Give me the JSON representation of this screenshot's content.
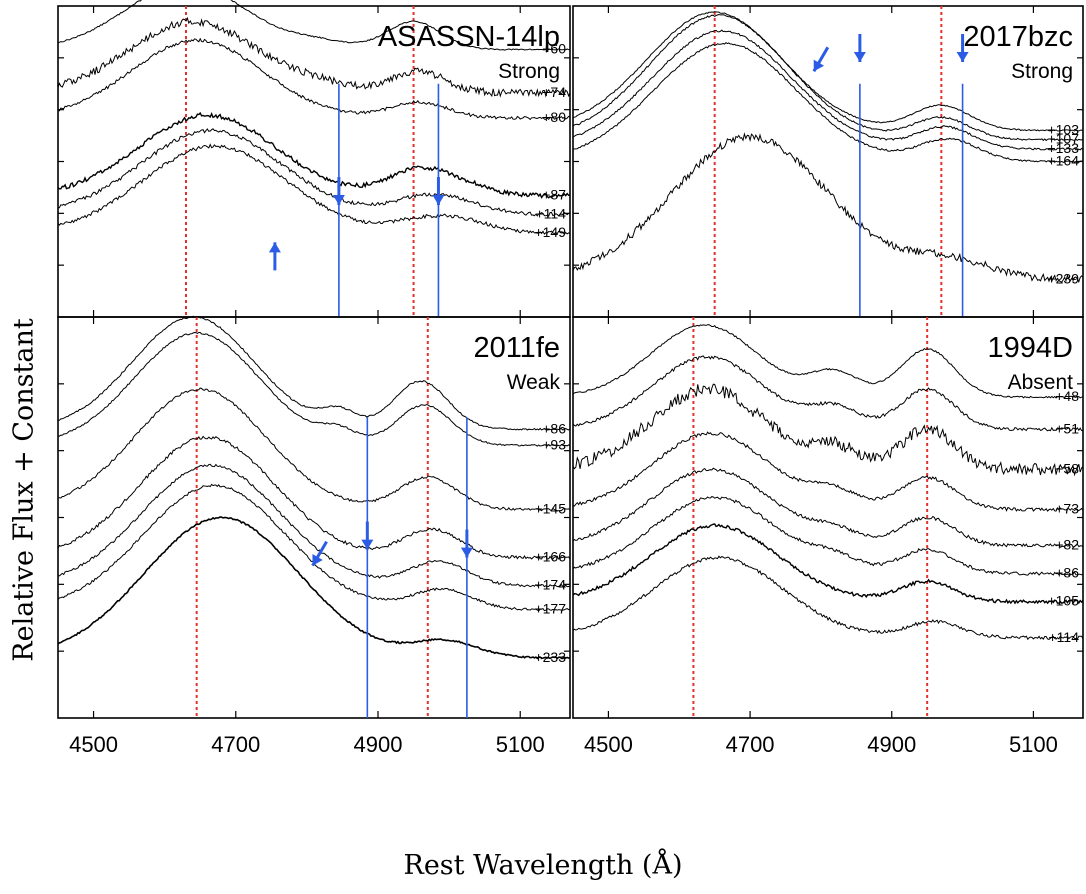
{
  "figure": {
    "ylabel": "Relative Flux + Constant",
    "xlabel": "Rest Wavelength (Å)"
  },
  "chart_data": [
    {
      "type": "line",
      "name": "ASASSN-14lp",
      "category": "Strong",
      "xlim": [
        4450,
        5170
      ],
      "x_ticks": [
        4500,
        4700,
        4900,
        5100
      ],
      "show_tick_labels": false,
      "red_lines": [
        4630,
        4950
      ],
      "blue_lines": [
        4845,
        4985
      ],
      "arrows": [
        {
          "x": 4755,
          "y": 0.24,
          "dir": "up"
        },
        {
          "x": 4845,
          "y": 0.36,
          "dir": "down"
        },
        {
          "x": 4985,
          "y": 0.36,
          "dir": "down"
        }
      ],
      "series": [
        {
          "phase": "+60",
          "offset": 0.86,
          "noise": 0.002,
          "width": 1,
          "peaks": [
            [
              4630,
              0.21,
              85
            ],
            [
              4950,
              0.09,
              38
            ],
            [
              4820,
              0.02,
              40
            ]
          ]
        },
        {
          "phase": "+74",
          "offset": 0.72,
          "noise": 0.012,
          "width": 1,
          "peaks": [
            [
              4640,
              0.23,
              90
            ],
            [
              4955,
              0.07,
              40
            ],
            [
              4815,
              0.02,
              40
            ]
          ]
        },
        {
          "phase": "+80",
          "offset": 0.64,
          "noise": 0.005,
          "width": 1,
          "peaks": [
            [
              4645,
              0.25,
              92
            ],
            [
              4958,
              0.05,
              40
            ]
          ]
        },
        {
          "phase": "+87",
          "offset": 0.39,
          "noise": 0.007,
          "width": 1.4,
          "peaks": [
            [
              4660,
              0.26,
              95
            ],
            [
              4955,
              0.08,
              42
            ],
            [
              5020,
              0.03,
              40
            ]
          ]
        },
        {
          "phase": "+114",
          "offset": 0.33,
          "noise": 0.006,
          "width": 1,
          "peaks": [
            [
              4665,
              0.27,
              98
            ],
            [
              4960,
              0.05,
              42
            ],
            [
              5020,
              0.03,
              40
            ]
          ]
        },
        {
          "phase": "+149",
          "offset": 0.27,
          "noise": 0.006,
          "width": 1,
          "peaks": [
            [
              4670,
              0.28,
              100
            ],
            [
              4965,
              0.04,
              44
            ],
            [
              5025,
              0.03,
              40
            ]
          ]
        }
      ]
    },
    {
      "type": "line",
      "name": "2017bzc",
      "category": "Strong",
      "xlim": [
        4450,
        5170
      ],
      "x_ticks": [
        4500,
        4700,
        4900,
        5100
      ],
      "show_tick_labels": false,
      "red_lines": [
        4650,
        4970
      ],
      "blue_lines": [
        4855,
        5000
      ],
      "arrows": [
        {
          "x": 4790,
          "y": 0.79,
          "dir": "downleft"
        },
        {
          "x": 4855,
          "y": 0.82,
          "dir": "down"
        },
        {
          "x": 5000,
          "y": 0.82,
          "dir": "down"
        }
      ],
      "series": [
        {
          "phase": "+103",
          "offset": 0.6,
          "noise": 0.002,
          "width": 1,
          "peaks": [
            [
              4650,
              0.38,
              95
            ],
            [
              4970,
              0.08,
              40
            ]
          ]
        },
        {
          "phase": "+107",
          "offset": 0.57,
          "noise": 0.003,
          "width": 1,
          "peaks": [
            [
              4655,
              0.4,
              97
            ],
            [
              4970,
              0.07,
              40
            ]
          ]
        },
        {
          "phase": "+133",
          "offset": 0.54,
          "noise": 0.003,
          "width": 1,
          "peaks": [
            [
              4660,
              0.38,
              98
            ],
            [
              4975,
              0.07,
              40
            ]
          ]
        },
        {
          "phase": "+164",
          "offset": 0.5,
          "noise": 0.003,
          "width": 1,
          "peaks": [
            [
              4665,
              0.38,
              100
            ],
            [
              4980,
              0.07,
              42
            ]
          ]
        },
        {
          "phase": "+239",
          "offset": 0.12,
          "noise": 0.012,
          "width": 1,
          "peaks": [
            [
              4700,
              0.46,
              110
            ],
            [
              4980,
              0.06,
              60
            ]
          ]
        }
      ]
    },
    {
      "type": "line",
      "name": "2011fe",
      "category": "Weak",
      "xlim": [
        4450,
        5170
      ],
      "x_ticks": [
        4500,
        4700,
        4900,
        5100
      ],
      "show_tick_labels": true,
      "red_lines": [
        4645,
        4970
      ],
      "blue_lines": [
        4885,
        5025
      ],
      "arrows": [
        {
          "x": 4808,
          "y": 0.38,
          "dir": "downleft"
        },
        {
          "x": 4885,
          "y": 0.42,
          "dir": "down"
        },
        {
          "x": 5025,
          "y": 0.4,
          "dir": "down"
        }
      ],
      "series": [
        {
          "phase": "+86",
          "offset": 0.72,
          "noise": 0.002,
          "width": 1,
          "peaks": [
            [
              4640,
              0.28,
              85
            ],
            [
              4960,
              0.12,
              38
            ],
            [
              4845,
              0.04,
              25
            ]
          ]
        },
        {
          "phase": "+93",
          "offset": 0.68,
          "noise": 0.002,
          "width": 1,
          "peaks": [
            [
              4645,
              0.28,
              87
            ],
            [
              4965,
              0.1,
              38
            ],
            [
              4845,
              0.03,
              25
            ]
          ]
        },
        {
          "phase": "+145",
          "offset": 0.52,
          "noise": 0.003,
          "width": 1,
          "peaks": [
            [
              4650,
              0.3,
              92
            ],
            [
              4970,
              0.08,
              40
            ]
          ]
        },
        {
          "phase": "+166",
          "offset": 0.4,
          "noise": 0.004,
          "width": 1,
          "peaks": [
            [
              4660,
              0.3,
              95
            ],
            [
              4975,
              0.07,
              40
            ]
          ]
        },
        {
          "phase": "+174",
          "offset": 0.33,
          "noise": 0.003,
          "width": 1,
          "peaks": [
            [
              4665,
              0.3,
              97
            ],
            [
              4985,
              0.06,
              40
            ]
          ]
        },
        {
          "phase": "+177",
          "offset": 0.27,
          "noise": 0.003,
          "width": 1,
          "peaks": [
            [
              4670,
              0.31,
              100
            ],
            [
              4990,
              0.05,
              42
            ]
          ]
        },
        {
          "phase": "+233",
          "offset": 0.15,
          "noise": 0.002,
          "width": 1.6,
          "peaks": [
            [
              4680,
              0.35,
              108
            ],
            [
              4995,
              0.04,
              45
            ]
          ]
        }
      ]
    },
    {
      "type": "line",
      "name": "1994D",
      "category": "Absent",
      "xlim": [
        4450,
        5170
      ],
      "x_ticks": [
        4500,
        4700,
        4900,
        5100
      ],
      "show_tick_labels": true,
      "red_lines": [
        4620,
        4950
      ],
      "blue_lines": [],
      "arrows": [],
      "series": [
        {
          "phase": "+48",
          "offset": 0.8,
          "noise": 0.002,
          "width": 1,
          "peaks": [
            [
              4635,
              0.18,
              75
            ],
            [
              4950,
              0.12,
              38
            ],
            [
              4820,
              0.06,
              35
            ]
          ]
        },
        {
          "phase": "+51",
          "offset": 0.72,
          "noise": 0.004,
          "width": 1,
          "peaks": [
            [
              4640,
              0.18,
              78
            ],
            [
              4950,
              0.1,
              38
            ],
            [
              4820,
              0.05,
              35
            ]
          ]
        },
        {
          "phase": "+58",
          "offset": 0.62,
          "noise": 0.015,
          "width": 1,
          "peaks": [
            [
              4640,
              0.2,
              80
            ],
            [
              4950,
              0.1,
              38
            ],
            [
              4820,
              0.05,
              35
            ]
          ]
        },
        {
          "phase": "+73",
          "offset": 0.52,
          "noise": 0.004,
          "width": 1,
          "peaks": [
            [
              4645,
              0.19,
              82
            ],
            [
              4950,
              0.08,
              38
            ],
            [
              4820,
              0.04,
              35
            ]
          ]
        },
        {
          "phase": "+82",
          "offset": 0.43,
          "noise": 0.004,
          "width": 1,
          "peaks": [
            [
              4645,
              0.19,
              85
            ],
            [
              4950,
              0.07,
              38
            ],
            [
              4820,
              0.03,
              35
            ]
          ]
        },
        {
          "phase": "+86",
          "offset": 0.36,
          "noise": 0.004,
          "width": 1,
          "peaks": [
            [
              4650,
              0.19,
              87
            ],
            [
              4950,
              0.06,
              38
            ],
            [
              4820,
              0.03,
              35
            ]
          ]
        },
        {
          "phase": "+105",
          "offset": 0.29,
          "noise": 0.004,
          "width": 1.4,
          "peaks": [
            [
              4650,
              0.19,
              90
            ],
            [
              4950,
              0.05,
              38
            ]
          ]
        },
        {
          "phase": "+114",
          "offset": 0.2,
          "noise": 0.004,
          "width": 1,
          "peaks": [
            [
              4655,
              0.2,
              92
            ],
            [
              4960,
              0.04,
              38
            ]
          ]
        }
      ]
    }
  ]
}
